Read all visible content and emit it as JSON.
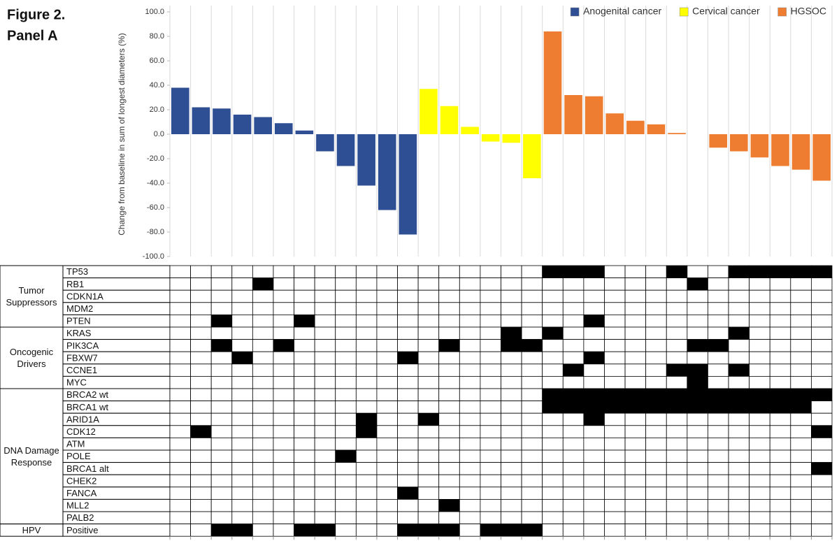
{
  "chart_data": [
    {
      "type": "bar",
      "title": "Figure 2.",
      "subtitle": "Panel A",
      "y_label": "Change from baseline in sum of longest diameters (%)",
      "categories": [
        null,
        null,
        null,
        null,
        null,
        null,
        null,
        null,
        null,
        null,
        null,
        null,
        null,
        null,
        null,
        null,
        null,
        null,
        null,
        null,
        null,
        null,
        null,
        null,
        null,
        null,
        null,
        null,
        null,
        null,
        null,
        null
      ],
      "series": [
        {
          "name": "Anogenital cancer",
          "color": "#2e4f94",
          "values": [
            38,
            22,
            21,
            16,
            14,
            9,
            3,
            -14,
            -26,
            -42,
            -62,
            -82,
            null,
            null,
            null,
            null,
            null,
            null,
            null,
            null,
            null,
            null,
            null,
            null,
            null,
            null,
            null,
            null,
            null,
            null,
            null,
            null
          ]
        },
        {
          "name": "Cervical cancer",
          "color": "#ffff00",
          "values": [
            null,
            null,
            null,
            null,
            null,
            null,
            null,
            null,
            null,
            null,
            null,
            null,
            37,
            23,
            6,
            -6,
            -7,
            -36,
            null,
            null,
            null,
            null,
            null,
            null,
            null,
            null,
            null,
            null,
            null,
            null,
            null,
            null
          ]
        },
        {
          "name": "HGSOC",
          "color": "#ee7d31",
          "values": [
            null,
            null,
            null,
            null,
            null,
            null,
            null,
            null,
            null,
            null,
            null,
            null,
            null,
            null,
            null,
            null,
            null,
            null,
            84,
            32,
            31,
            17,
            11,
            8,
            1,
            null,
            -11,
            -14,
            -19,
            -26,
            -29,
            -38
          ]
        }
      ],
      "ylim": [
        -100,
        100
      ],
      "yticks": [
        {
          "value": -100,
          "label": "-100.0"
        },
        {
          "value": -80,
          "label": "-80.0"
        },
        {
          "value": -60,
          "label": "-60.0"
        },
        {
          "value": -40,
          "label": "-40.0"
        },
        {
          "value": -20,
          "label": "-20.0"
        },
        {
          "value": 0,
          "label": "0.0"
        },
        {
          "value": 20,
          "label": "20.0"
        },
        {
          "value": 40,
          "label": "40.0"
        },
        {
          "value": 60,
          "label": "60.0"
        },
        {
          "value": 80,
          "label": "80.0"
        },
        {
          "value": 100,
          "label": "100.0"
        }
      ],
      "legend": "top-right"
    },
    {
      "type": "heatmap",
      "color": "#000000",
      "groups": [
        {
          "name": "Tumor Suppressors",
          "rows": [
            {
              "name": "TP53",
              "values": [
                0,
                0,
                0,
                0,
                0,
                0,
                0,
                0,
                0,
                0,
                0,
                0,
                0,
                0,
                0,
                0,
                0,
                0,
                1,
                1,
                1,
                0,
                0,
                0,
                1,
                0,
                0,
                1,
                1,
                1,
                1,
                1
              ]
            },
            {
              "name": "RB1",
              "values": [
                0,
                0,
                0,
                0,
                1,
                0,
                0,
                0,
                0,
                0,
                0,
                0,
                0,
                0,
                0,
                0,
                0,
                0,
                0,
                0,
                0,
                0,
                0,
                0,
                0,
                1,
                0,
                0,
                0,
                0,
                0,
                0
              ]
            },
            {
              "name": "CDKN1A",
              "values": [
                0,
                0,
                0,
                0,
                0,
                0,
                0,
                0,
                0,
                0,
                0,
                0,
                0,
                0,
                0,
                0,
                0,
                0,
                0,
                0,
                0,
                0,
                0,
                0,
                0,
                0,
                0,
                0,
                0,
                0,
                0,
                0
              ]
            },
            {
              "name": "MDM2",
              "values": [
                0,
                0,
                0,
                0,
                0,
                0,
                0,
                0,
                0,
                0,
                0,
                0,
                0,
                0,
                0,
                0,
                0,
                0,
                0,
                0,
                0,
                0,
                0,
                0,
                0,
                0,
                0,
                0,
                0,
                0,
                0,
                0
              ]
            },
            {
              "name": "PTEN",
              "values": [
                0,
                0,
                1,
                0,
                0,
                0,
                1,
                0,
                0,
                0,
                0,
                0,
                0,
                0,
                0,
                0,
                0,
                0,
                0,
                0,
                1,
                0,
                0,
                0,
                0,
                0,
                0,
                0,
                0,
                0,
                0,
                0
              ]
            }
          ]
        },
        {
          "name": "Oncogenic Drivers",
          "rows": [
            {
              "name": "KRAS",
              "values": [
                0,
                0,
                0,
                0,
                0,
                0,
                0,
                0,
                0,
                0,
                0,
                0,
                0,
                0,
                0,
                0,
                1,
                0,
                1,
                0,
                0,
                0,
                0,
                0,
                0,
                0,
                0,
                1,
                0,
                0,
                0,
                0
              ]
            },
            {
              "name": "PIK3CA",
              "values": [
                0,
                0,
                1,
                0,
                0,
                1,
                0,
                0,
                0,
                0,
                0,
                0,
                0,
                1,
                0,
                0,
                1,
                1,
                0,
                0,
                0,
                0,
                0,
                0,
                0,
                1,
                1,
                0,
                0,
                0,
                0,
                0
              ]
            },
            {
              "name": "FBXW7",
              "values": [
                0,
                0,
                0,
                1,
                0,
                0,
                0,
                0,
                0,
                0,
                0,
                1,
                0,
                0,
                0,
                0,
                0,
                0,
                0,
                0,
                1,
                0,
                0,
                0,
                0,
                0,
                0,
                0,
                0,
                0,
                0,
                0
              ]
            },
            {
              "name": "CCNE1",
              "values": [
                0,
                0,
                0,
                0,
                0,
                0,
                0,
                0,
                0,
                0,
                0,
                0,
                0,
                0,
                0,
                0,
                0,
                0,
                0,
                1,
                0,
                0,
                0,
                0,
                1,
                1,
                0,
                1,
                0,
                0,
                0,
                0
              ]
            },
            {
              "name": "MYC",
              "values": [
                0,
                0,
                0,
                0,
                0,
                0,
                0,
                0,
                0,
                0,
                0,
                0,
                0,
                0,
                0,
                0,
                0,
                0,
                0,
                0,
                0,
                0,
                0,
                0,
                0,
                1,
                0,
                0,
                0,
                0,
                0,
                0
              ]
            }
          ]
        },
        {
          "name": "DNA Damage Response",
          "rows": [
            {
              "name": "BRCA2 wt",
              "values": [
                0,
                0,
                0,
                0,
                0,
                0,
                0,
                0,
                0,
                0,
                0,
                0,
                0,
                0,
                0,
                0,
                0,
                0,
                1,
                1,
                1,
                1,
                1,
                1,
                1,
                1,
                1,
                1,
                1,
                1,
                1,
                1
              ]
            },
            {
              "name": "BRCA1 wt",
              "values": [
                0,
                0,
                0,
                0,
                0,
                0,
                0,
                0,
                0,
                0,
                0,
                0,
                0,
                0,
                0,
                0,
                0,
                0,
                1,
                1,
                1,
                1,
                1,
                1,
                1,
                1,
                1,
                1,
                1,
                1,
                1,
                0
              ]
            },
            {
              "name": "ARID1A",
              "values": [
                0,
                0,
                0,
                0,
                0,
                0,
                0,
                0,
                0,
                1,
                0,
                0,
                1,
                0,
                0,
                0,
                0,
                0,
                0,
                0,
                1,
                0,
                0,
                0,
                0,
                0,
                0,
                0,
                0,
                0,
                0,
                0
              ]
            },
            {
              "name": "CDK12",
              "values": [
                0,
                1,
                0,
                0,
                0,
                0,
                0,
                0,
                0,
                1,
                0,
                0,
                0,
                0,
                0,
                0,
                0,
                0,
                0,
                0,
                0,
                0,
                0,
                0,
                0,
                0,
                0,
                0,
                0,
                0,
                0,
                1
              ]
            },
            {
              "name": "ATM",
              "values": [
                0,
                0,
                0,
                0,
                0,
                0,
                0,
                0,
                0,
                0,
                0,
                0,
                0,
                0,
                0,
                0,
                0,
                0,
                0,
                0,
                0,
                0,
                0,
                0,
                0,
                0,
                0,
                0,
                0,
                0,
                0,
                0
              ]
            },
            {
              "name": "POLE",
              "values": [
                0,
                0,
                0,
                0,
                0,
                0,
                0,
                0,
                1,
                0,
                0,
                0,
                0,
                0,
                0,
                0,
                0,
                0,
                0,
                0,
                0,
                0,
                0,
                0,
                0,
                0,
                0,
                0,
                0,
                0,
                0,
                0
              ]
            },
            {
              "name": "BRCA1 alt",
              "values": [
                0,
                0,
                0,
                0,
                0,
                0,
                0,
                0,
                0,
                0,
                0,
                0,
                0,
                0,
                0,
                0,
                0,
                0,
                0,
                0,
                0,
                0,
                0,
                0,
                0,
                0,
                0,
                0,
                0,
                0,
                0,
                1
              ]
            },
            {
              "name": "CHEK2",
              "values": [
                0,
                0,
                0,
                0,
                0,
                0,
                0,
                0,
                0,
                0,
                0,
                0,
                0,
                0,
                0,
                0,
                0,
                0,
                0,
                0,
                0,
                0,
                0,
                0,
                0,
                0,
                0,
                0,
                0,
                0,
                0,
                0
              ]
            },
            {
              "name": "FANCA",
              "values": [
                0,
                0,
                0,
                0,
                0,
                0,
                0,
                0,
                0,
                0,
                0,
                1,
                0,
                0,
                0,
                0,
                0,
                0,
                0,
                0,
                0,
                0,
                0,
                0,
                0,
                0,
                0,
                0,
                0,
                0,
                0,
                0
              ]
            },
            {
              "name": "MLL2",
              "values": [
                0,
                0,
                0,
                0,
                0,
                0,
                0,
                0,
                0,
                0,
                0,
                0,
                0,
                1,
                0,
                0,
                0,
                0,
                0,
                0,
                0,
                0,
                0,
                0,
                0,
                0,
                0,
                0,
                0,
                0,
                0,
                0
              ]
            },
            {
              "name": "PALB2",
              "values": [
                0,
                0,
                0,
                0,
                0,
                0,
                0,
                0,
                0,
                0,
                0,
                0,
                0,
                0,
                0,
                0,
                0,
                0,
                0,
                0,
                0,
                0,
                0,
                0,
                0,
                0,
                0,
                0,
                0,
                0,
                0,
                0
              ]
            }
          ]
        },
        {
          "name": "HPV",
          "rows": [
            {
              "name": "Positive",
              "values": [
                0,
                0,
                1,
                1,
                0,
                0,
                1,
                1,
                0,
                0,
                0,
                1,
                1,
                1,
                0,
                1,
                1,
                1,
                0,
                0,
                0,
                0,
                0,
                0,
                0,
                0,
                0,
                0,
                0,
                0,
                0,
                0
              ]
            }
          ]
        }
      ]
    }
  ]
}
